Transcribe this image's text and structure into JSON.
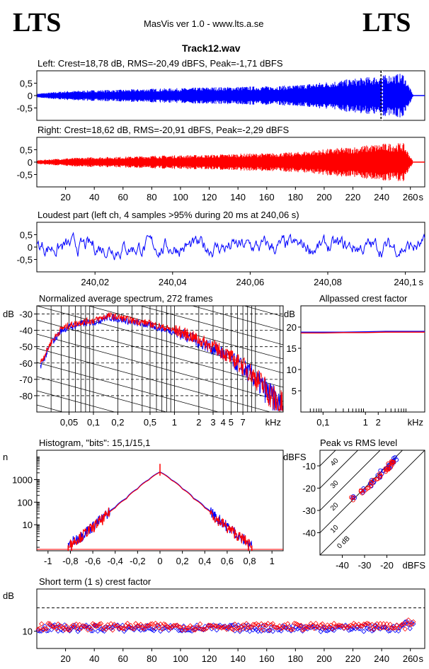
{
  "header": {
    "logo_left": "LTS",
    "logo_right": "LTS",
    "app_title": "MasVis ver 1.0 - www.lts.a.se",
    "file_name": "Track12.wav"
  },
  "colors": {
    "left": "#0000ff",
    "right": "#ff0000",
    "grid": "#000000"
  },
  "chart_data": [
    {
      "id": "left-waveform",
      "type": "area",
      "title": "Left: Crest=18,78 dB, RMS=-20,49 dBFS, Peak=-1,71 dBFS",
      "xlim": [
        0,
        270
      ],
      "ylim": [
        -1,
        1
      ],
      "yticks": [
        0.5,
        0,
        -0.5
      ],
      "ytick_labels": [
        "0,5",
        "0",
        "-0,5"
      ],
      "marker_x": 240.06,
      "series": [
        {
          "x": [
            0,
            20,
            40,
            60,
            80,
            100,
            120,
            140,
            160,
            180,
            200,
            220,
            240,
            255,
            262
          ],
          "envelope": [
            0.08,
            0.18,
            0.22,
            0.24,
            0.28,
            0.3,
            0.34,
            0.36,
            0.38,
            0.42,
            0.55,
            0.68,
            0.82,
            0.9,
            0.02
          ]
        }
      ]
    },
    {
      "id": "right-waveform",
      "type": "area",
      "title": "Right: Crest=18,62 dB, RMS=-20,91 dBFS, Peak=-2,29 dBFS",
      "xlim": [
        0,
        270
      ],
      "ylim": [
        -1,
        1
      ],
      "yticks": [
        0.5,
        0,
        -0.5
      ],
      "ytick_labels": [
        "0,5",
        "0",
        "-0,5"
      ],
      "xticks": [
        20,
        40,
        60,
        80,
        100,
        120,
        140,
        160,
        180,
        200,
        220,
        240,
        260
      ],
      "xunit": "s",
      "series": [
        {
          "x": [
            0,
            20,
            40,
            60,
            80,
            100,
            120,
            140,
            160,
            180,
            200,
            220,
            240,
            255,
            262
          ],
          "envelope": [
            0.08,
            0.16,
            0.2,
            0.22,
            0.26,
            0.28,
            0.3,
            0.34,
            0.36,
            0.4,
            0.52,
            0.62,
            0.75,
            0.78,
            0.02
          ]
        }
      ]
    },
    {
      "id": "loudest-part",
      "type": "line",
      "title": "Loudest part (left  ch, 4 samples >95% during 20 ms at 240,06 s)",
      "xlim": [
        240.005,
        240.105
      ],
      "ylim": [
        -1,
        1
      ],
      "yticks": [
        0.5,
        0,
        -0.5
      ],
      "ytick_labels": [
        "0,5",
        "0",
        "-0,5"
      ],
      "xticks": [
        240.02,
        240.04,
        240.06,
        240.08,
        240.1
      ],
      "xtick_labels": [
        "240,02",
        "240,04",
        "240,06",
        "240,08",
        "240,1"
      ],
      "xunit": "s"
    },
    {
      "id": "avg-spectrum",
      "type": "line",
      "title": "Normalized average spectrum, 272 frames",
      "ylabel": "dB",
      "ylim": [
        -90,
        -25
      ],
      "yticks": [
        -30,
        -40,
        -50,
        -60,
        -70,
        -80
      ],
      "xscale": "log",
      "xlim": [
        0.02,
        22
      ],
      "xticks": [
        0.05,
        0.1,
        0.2,
        0.5,
        1,
        2,
        3,
        4,
        5,
        7
      ],
      "xtick_labels": [
        "0,05",
        "0,1",
        "0,2",
        "0,5",
        "1",
        "2",
        "3",
        "4",
        "5",
        "7"
      ],
      "xunit": "kHz",
      "series": [
        {
          "name": "left",
          "x": [
            0.022,
            0.03,
            0.04,
            0.05,
            0.07,
            0.1,
            0.15,
            0.2,
            0.3,
            0.5,
            0.7,
            1,
            1.5,
            2,
            3,
            5,
            7,
            10,
            15,
            20
          ],
          "y": [
            -62,
            -48,
            -40,
            -38,
            -36,
            -35,
            -32,
            -33,
            -35,
            -37,
            -39,
            -41,
            -44,
            -47,
            -51,
            -58,
            -63,
            -70,
            -80,
            -88
          ]
        },
        {
          "name": "right",
          "x": [
            0.022,
            0.03,
            0.04,
            0.05,
            0.07,
            0.1,
            0.15,
            0.2,
            0.3,
            0.5,
            0.7,
            1,
            1.5,
            2,
            3,
            5,
            7,
            10,
            15,
            20
          ],
          "y": [
            -60,
            -47,
            -39,
            -37,
            -35,
            -34,
            -31,
            -32,
            -34,
            -36,
            -38,
            -40,
            -43,
            -46,
            -50,
            -57,
            -62,
            -69,
            -79,
            -87
          ]
        }
      ]
    },
    {
      "id": "allpass-crest",
      "type": "line",
      "title": "Allpassed crest factor",
      "ylabel": "dB",
      "ylim": [
        0,
        25
      ],
      "yticks": [
        20,
        15,
        10,
        5
      ],
      "xscale": "log",
      "xlim": [
        0.03,
        25
      ],
      "xticks": [
        0.1,
        1,
        2
      ],
      "xtick_labels": [
        "0,1",
        "1",
        "2"
      ],
      "xunit": "kHz",
      "series": [
        {
          "name": "left",
          "x": [
            0.03,
            0.1,
            0.3,
            1,
            3,
            10,
            25
          ],
          "y": [
            18.8,
            18.8,
            18.8,
            18.9,
            19.0,
            19.0,
            19.0
          ]
        },
        {
          "name": "right",
          "x": [
            0.03,
            0.1,
            0.3,
            1,
            3,
            10,
            25
          ],
          "y": [
            18.6,
            18.6,
            18.7,
            18.7,
            18.8,
            18.8,
            18.8
          ]
        }
      ]
    },
    {
      "id": "histogram",
      "type": "line",
      "title": "Histogram, \"bits\": 15,1/15,1",
      "ylabel": "n",
      "yscale": "log",
      "ylim": [
        0.7,
        20000
      ],
      "yticks": [
        1000,
        100,
        10
      ],
      "xlim": [
        -1.1,
        1.1
      ],
      "xticks": [
        -1,
        -0.8,
        -0.6,
        -0.4,
        -0.2,
        0,
        0.2,
        0.4,
        0.6,
        0.8,
        1
      ],
      "xtick_labels": [
        "-1",
        "-0,8",
        "-0,6",
        "-0,4",
        "-0,2",
        "0",
        "0,2",
        "0,4",
        "0,6",
        "0,8",
        "1"
      ],
      "series": [
        {
          "name": "left",
          "x": [
            -0.82,
            -0.7,
            -0.6,
            -0.5,
            -0.4,
            -0.3,
            -0.2,
            -0.1,
            0,
            0.1,
            0.2,
            0.3,
            0.4,
            0.5,
            0.6,
            0.7,
            0.82
          ],
          "y": [
            1,
            3,
            8,
            20,
            60,
            150,
            400,
            1000,
            2200,
            1000,
            400,
            150,
            60,
            20,
            8,
            3,
            1
          ]
        },
        {
          "name": "right",
          "x": [
            -0.82,
            -0.7,
            -0.6,
            -0.5,
            -0.4,
            -0.3,
            -0.2,
            -0.1,
            0,
            0.1,
            0.2,
            0.3,
            0.4,
            0.5,
            0.6,
            0.7,
            0.82
          ],
          "y": [
            1,
            3,
            7,
            18,
            55,
            140,
            380,
            950,
            2100,
            950,
            380,
            140,
            55,
            18,
            7,
            3,
            1
          ]
        }
      ]
    },
    {
      "id": "peak-vs-rms",
      "type": "scatter",
      "title": "Peak vs RMS level",
      "ylabel": "dBFS",
      "xlabel_unit": "dBFS",
      "xlim": [
        -50,
        -3
      ],
      "ylim": [
        -50,
        -3
      ],
      "xticks": [
        -40,
        -30,
        -20
      ],
      "yticks": [
        -10,
        -20,
        -30,
        -40
      ],
      "diagonal_labels": [
        "40",
        "30",
        "20",
        "10",
        "0 dB"
      ],
      "series": [
        {
          "name": "left",
          "x": [
            -35,
            -30,
            -28,
            -26,
            -24,
            -22,
            -20,
            -19,
            -18,
            -17,
            -16
          ],
          "y": [
            -24,
            -21,
            -19,
            -17,
            -15,
            -13,
            -11,
            -10,
            -9,
            -8,
            -7
          ]
        },
        {
          "name": "right",
          "x": [
            -36,
            -31,
            -29,
            -27,
            -25,
            -23,
            -21,
            -20,
            -19,
            -18,
            -17
          ],
          "y": [
            -25,
            -22,
            -20,
            -18,
            -16,
            -14,
            -12,
            -11,
            -10,
            -9,
            -8
          ]
        }
      ]
    },
    {
      "id": "short-term-crest",
      "type": "scatter",
      "title": "Short term (1 s) crest factor",
      "ylabel": "dB",
      "yscale": "log",
      "ylim": [
        6,
        35
      ],
      "yticks": [
        10
      ],
      "dashed_y": 20,
      "xlim": [
        0,
        270
      ],
      "xticks": [
        20,
        40,
        60,
        80,
        100,
        120,
        140,
        160,
        180,
        200,
        220,
        240,
        260
      ],
      "xunit": "s",
      "series": [
        {
          "name": "left",
          "level": 11
        },
        {
          "name": "right",
          "level": 11.5
        }
      ]
    }
  ]
}
